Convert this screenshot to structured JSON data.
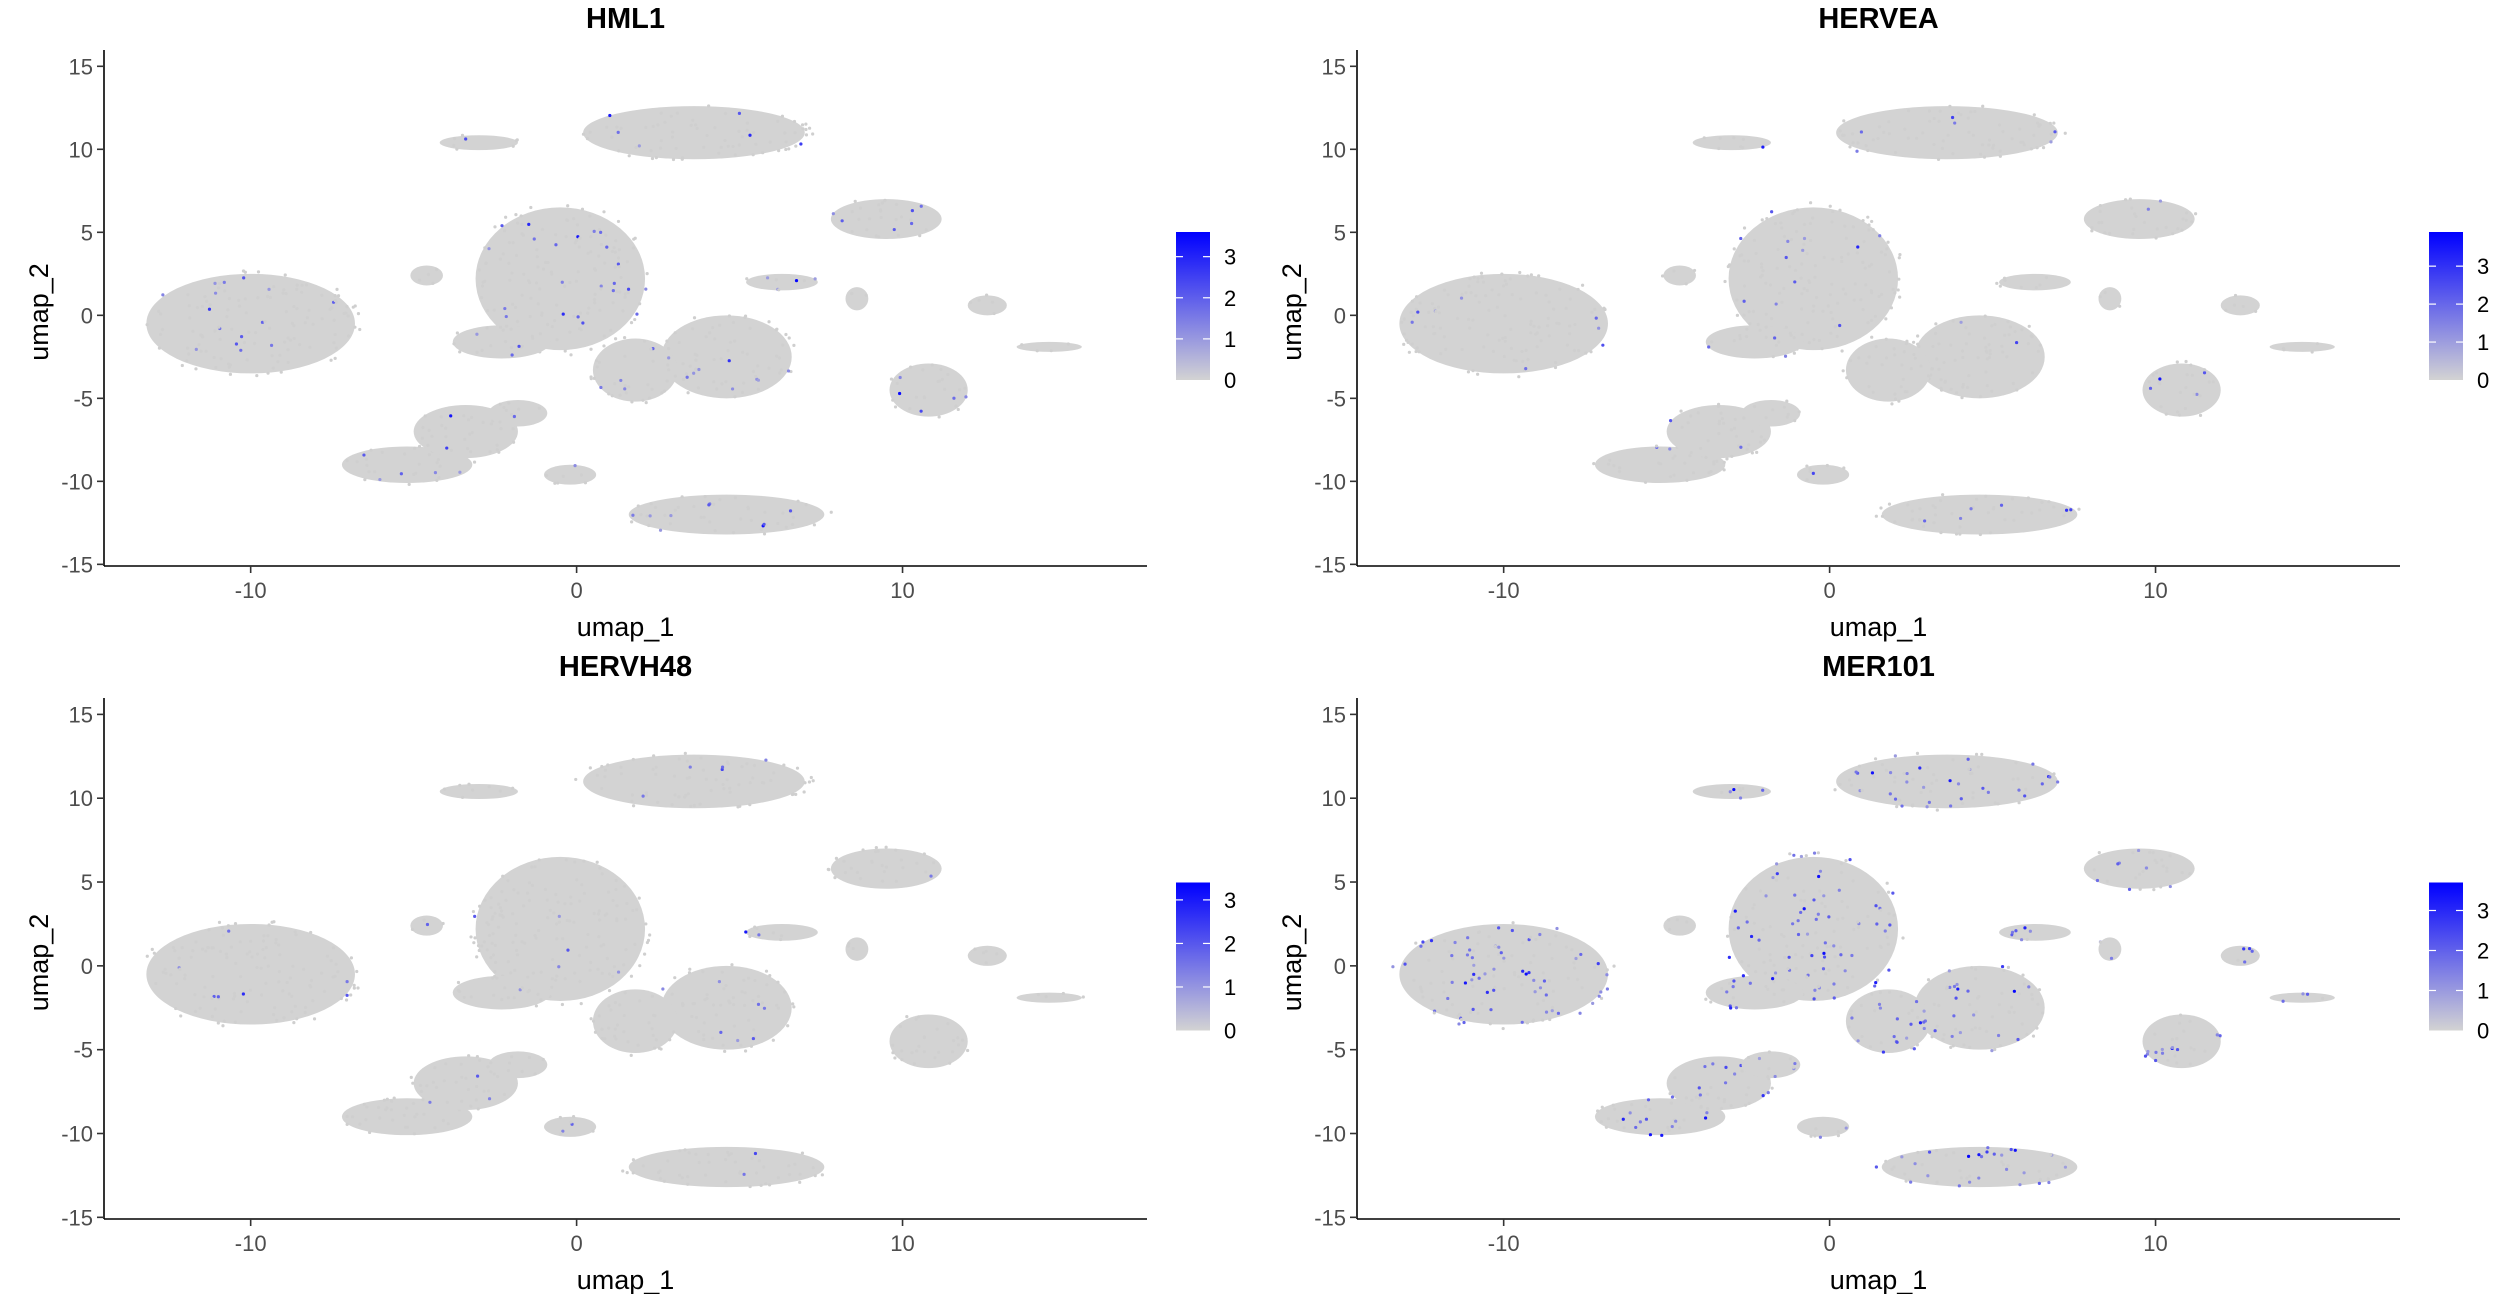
{
  "chart_data": {
    "type": "scatter",
    "xlabel": "umap_1",
    "ylabel": "umap_2",
    "xlim": [
      -14.5,
      17.5
    ],
    "ylim": [
      -15.1,
      15.5
    ],
    "xticks": [
      -10,
      0,
      10
    ],
    "yticks": [
      -15,
      -10,
      -5,
      0,
      5,
      10,
      15
    ],
    "grid": false,
    "low_color": "#d3d3d3",
    "high_color": "#0000ff",
    "clusters": [
      {
        "cx": -10,
        "cy": -0.5,
        "rx": 3.2,
        "ry": 3.0
      },
      {
        "cx": -0.5,
        "cy": 2.2,
        "rx": 2.6,
        "ry": 4.3
      },
      {
        "cx": 3.6,
        "cy": 11.0,
        "rx": 3.4,
        "ry": 1.6
      },
      {
        "cx": -3.0,
        "cy": 10.4,
        "rx": 1.2,
        "ry": 0.45
      },
      {
        "cx": 9.5,
        "cy": 5.8,
        "rx": 1.7,
        "ry": 1.2
      },
      {
        "cx": 6.3,
        "cy": 2.0,
        "rx": 1.1,
        "ry": 0.5
      },
      {
        "cx": 8.6,
        "cy": 1.0,
        "rx": 0.35,
        "ry": 0.7
      },
      {
        "cx": 12.6,
        "cy": 0.6,
        "rx": 0.6,
        "ry": 0.6
      },
      {
        "cx": 14.5,
        "cy": -1.9,
        "rx": 1.0,
        "ry": 0.3
      },
      {
        "cx": 10.8,
        "cy": -4.5,
        "rx": 1.2,
        "ry": 1.6
      },
      {
        "cx": 4.6,
        "cy": -2.5,
        "rx": 2.0,
        "ry": 2.5
      },
      {
        "cx": 1.8,
        "cy": -3.3,
        "rx": 1.3,
        "ry": 1.9
      },
      {
        "cx": -2.3,
        "cy": -1.6,
        "rx": 1.5,
        "ry": 1.0
      },
      {
        "cx": -5.2,
        "cy": -9.0,
        "rx": 2.0,
        "ry": 1.1
      },
      {
        "cx": -3.4,
        "cy": -7.0,
        "rx": 1.6,
        "ry": 1.6
      },
      {
        "cx": -1.8,
        "cy": -5.9,
        "rx": 0.9,
        "ry": 0.8
      },
      {
        "cx": -0.2,
        "cy": -9.6,
        "rx": 0.8,
        "ry": 0.6
      },
      {
        "cx": 4.6,
        "cy": -12.0,
        "rx": 3.0,
        "ry": 1.2
      },
      {
        "cx": -4.6,
        "cy": 2.4,
        "rx": 0.5,
        "ry": 0.6
      }
    ],
    "panels": [
      {
        "title": "HML1",
        "legend_max": 3.6,
        "legend_ticks": [
          "0",
          "1",
          "2",
          "3"
        ],
        "expression_level": 0.15
      },
      {
        "title": "HERVEA",
        "legend_max": 3.9,
        "legend_ticks": [
          "0",
          "1",
          "2",
          "3"
        ],
        "expression_level": 0.08
      },
      {
        "title": "HERVH48",
        "legend_max": 3.4,
        "legend_ticks": [
          "0",
          "1",
          "2",
          "3"
        ],
        "expression_level": 0.06
      },
      {
        "title": "MER101",
        "legend_max": 3.7,
        "legend_ticks": [
          "0",
          "1",
          "2",
          "3"
        ],
        "expression_level": 0.4
      }
    ]
  }
}
